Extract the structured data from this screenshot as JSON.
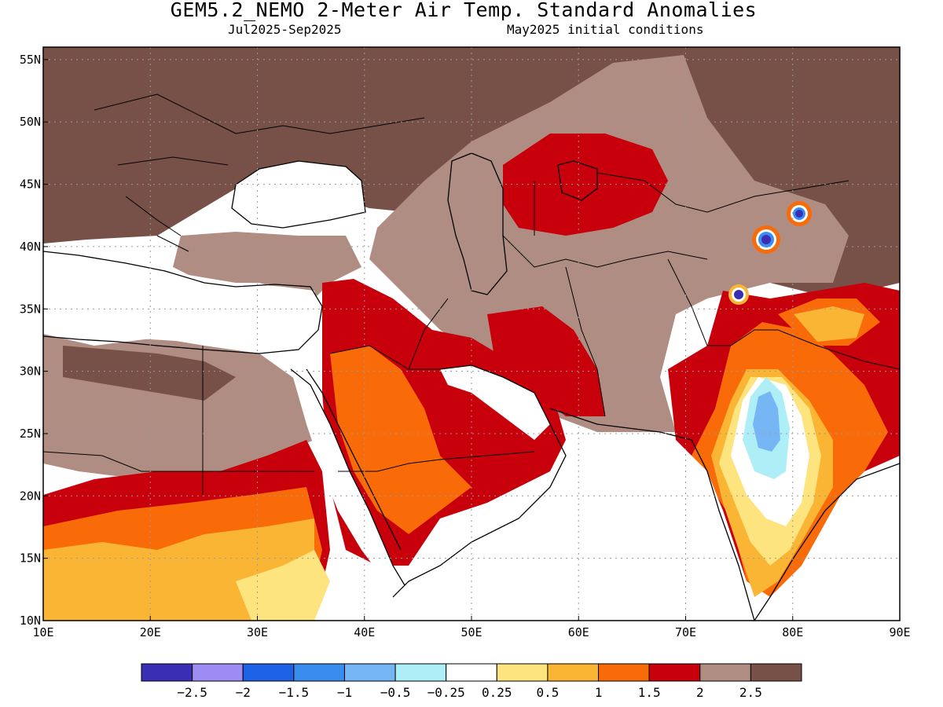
{
  "header": {
    "title": "GEM5.2_NEMO 2-Meter Air Temp. Standard Anomalies",
    "period": "Jul2025-Sep2025",
    "init": "May2025 initial conditions"
  },
  "map": {
    "lon_range": [
      10,
      90
    ],
    "lat_range": [
      10,
      56
    ],
    "lon_ticks": [
      "10E",
      "20E",
      "30E",
      "40E",
      "50E",
      "60E",
      "70E",
      "80E",
      "90E"
    ],
    "lat_ticks": [
      "10N",
      "15N",
      "20N",
      "25N",
      "30N",
      "35N",
      "40N",
      "45N",
      "50N",
      "55N"
    ],
    "grid": "dotted",
    "coastlines": true,
    "country_borders": true
  },
  "colorbar": {
    "colors": [
      "#3a2fb4",
      "#9f8cf3",
      "#1e62e6",
      "#3b8cef",
      "#77b6f5",
      "#aeeef7",
      "#ffffff",
      "#fde47f",
      "#fbb534",
      "#f96b09",
      "#c8000c",
      "#b08d82",
      "#775048"
    ],
    "labels": [
      "-2.5",
      "-2",
      "-1.5",
      "-1",
      "-0.5",
      "-0.25",
      "0.25",
      "0.5",
      "1",
      "1.5",
      "2",
      "2.5"
    ]
  },
  "palette": {
    "strong_warm": "#775048",
    "warm_2": "#b08d82",
    "warm_15": "#c8000c",
    "warm_1": "#f96b09",
    "warm_05": "#fbb534",
    "warm_025": "#fde47f",
    "cool_025": "#aeeef7",
    "cool_05": "#77b6f5",
    "cool_1": "#3b8cef",
    "cool_15": "#1e62e6",
    "cool_25": "#3a2fb4"
  }
}
